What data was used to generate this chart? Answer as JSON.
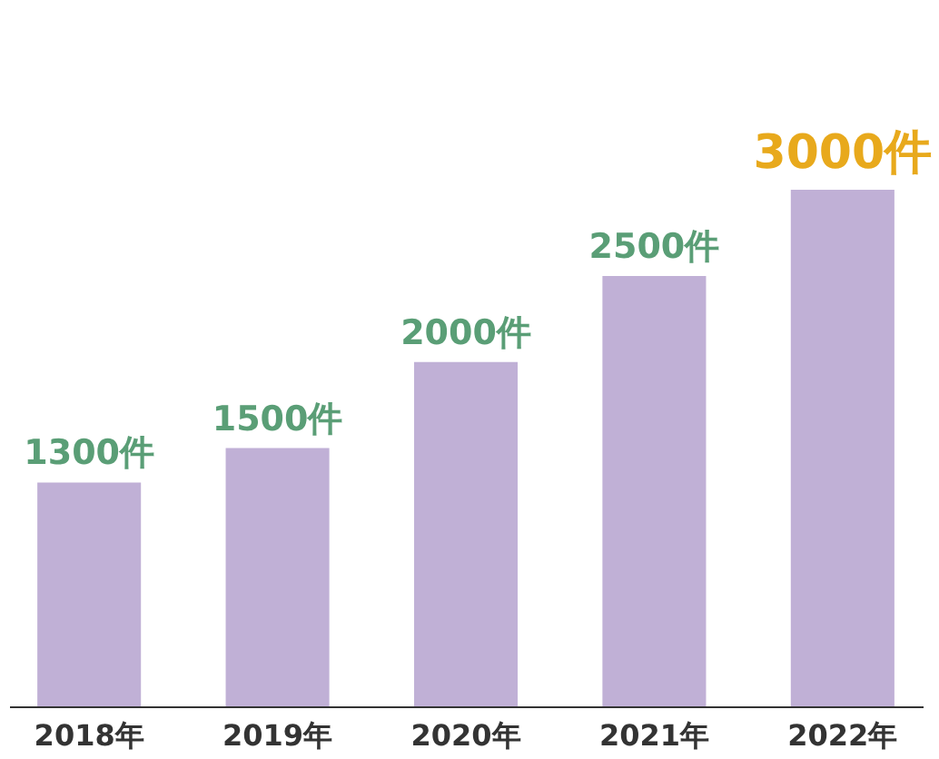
{
  "chart_data": {
    "type": "bar",
    "categories": [
      "2018年",
      "2019年",
      "2020年",
      "2021年",
      "2022年"
    ],
    "values": [
      1300,
      1500,
      2000,
      2500,
      3000
    ],
    "value_labels": [
      "1300件",
      "1500件",
      "2000件",
      "2500件",
      "3000件"
    ],
    "color": "#c0b0d6",
    "grid": false,
    "tick_labels": "x"
  }
}
